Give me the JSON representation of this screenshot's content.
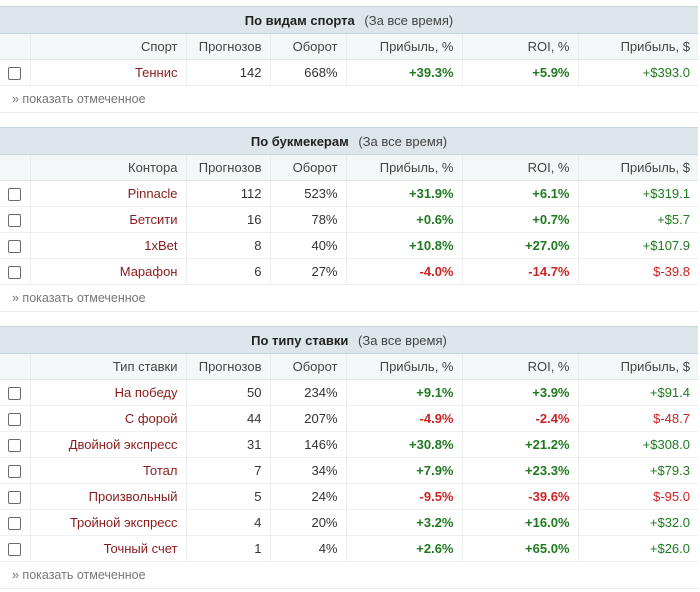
{
  "show_checked_label": "» показать отмеченное",
  "sections": [
    {
      "title": "По видам спорта",
      "subtitle": "(За все время)",
      "headers": [
        "Спорт",
        "Прогнозов",
        "Оборот",
        "Прибыль, %",
        "ROI, %",
        "Прибыль, $"
      ],
      "rows": [
        {
          "name": "Теннис",
          "count": "142",
          "turnover": "668%",
          "profit_pct": "+39.3%",
          "roi": "+5.9%",
          "profit_usd": "+$393.0"
        }
      ]
    },
    {
      "title": "По букмекерам",
      "subtitle": "(За все время)",
      "headers": [
        "Контора",
        "Прогнозов",
        "Оборот",
        "Прибыль, %",
        "ROI, %",
        "Прибыль, $"
      ],
      "rows": [
        {
          "name": "Pinnacle",
          "count": "112",
          "turnover": "523%",
          "profit_pct": "+31.9%",
          "roi": "+6.1%",
          "profit_usd": "+$319.1"
        },
        {
          "name": "Бетсити",
          "count": "16",
          "turnover": "78%",
          "profit_pct": "+0.6%",
          "roi": "+0.7%",
          "profit_usd": "+$5.7"
        },
        {
          "name": "1xBet",
          "count": "8",
          "turnover": "40%",
          "profit_pct": "+10.8%",
          "roi": "+27.0%",
          "profit_usd": "+$107.9"
        },
        {
          "name": "Марафон",
          "count": "6",
          "turnover": "27%",
          "profit_pct": "-4.0%",
          "roi": "-14.7%",
          "profit_usd": "$-39.8"
        }
      ]
    },
    {
      "title": "По типу ставки",
      "subtitle": "(За все время)",
      "headers": [
        "Тип ставки",
        "Прогнозов",
        "Оборот",
        "Прибыль, %",
        "ROI, %",
        "Прибыль, $"
      ],
      "rows": [
        {
          "name": "На победу",
          "count": "50",
          "turnover": "234%",
          "profit_pct": "+9.1%",
          "roi": "+3.9%",
          "profit_usd": "+$91.4"
        },
        {
          "name": "С форой",
          "count": "44",
          "turnover": "207%",
          "profit_pct": "-4.9%",
          "roi": "-2.4%",
          "profit_usd": "$-48.7"
        },
        {
          "name": "Двойной экспресс",
          "count": "31",
          "turnover": "146%",
          "profit_pct": "+30.8%",
          "roi": "+21.2%",
          "profit_usd": "+$308.0"
        },
        {
          "name": "Тотал",
          "count": "7",
          "turnover": "34%",
          "profit_pct": "+7.9%",
          "roi": "+23.3%",
          "profit_usd": "+$79.3"
        },
        {
          "name": "Произвольный",
          "count": "5",
          "turnover": "24%",
          "profit_pct": "-9.5%",
          "roi": "-39.6%",
          "profit_usd": "$-95.0"
        },
        {
          "name": "Тройной экспресс",
          "count": "4",
          "turnover": "20%",
          "profit_pct": "+3.2%",
          "roi": "+16.0%",
          "profit_usd": "+$32.0"
        },
        {
          "name": "Точный счет",
          "count": "1",
          "turnover": "4%",
          "profit_pct": "+2.6%",
          "roi": "+65.0%",
          "profit_usd": "+$26.0"
        }
      ]
    }
  ]
}
